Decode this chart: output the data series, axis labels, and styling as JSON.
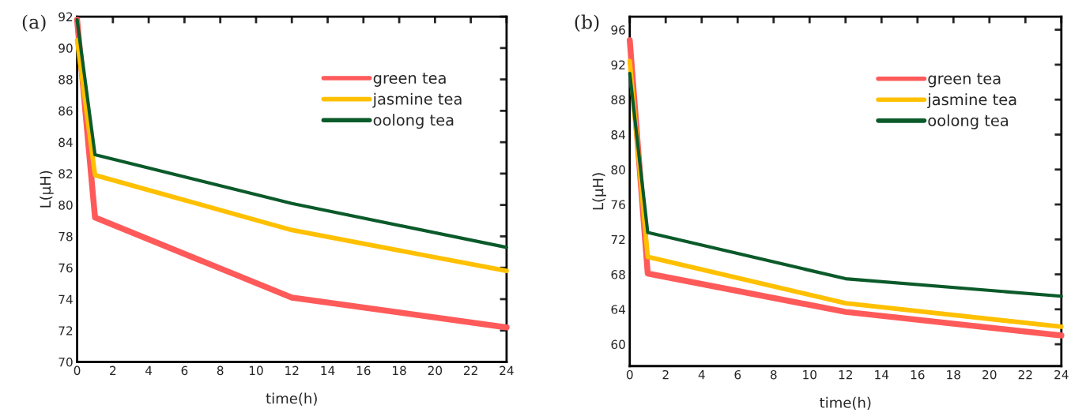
{
  "chart_data": [
    {
      "type": "line",
      "xlabel": "time(h)",
      "ylabel": "L(μH)",
      "annotations": [
        "(a)"
      ],
      "x": [
        0,
        1,
        12,
        24
      ],
      "series": [
        {
          "name": "green tea",
          "color": "#ff5a5a",
          "values": [
            91.8,
            79.2,
            74.1,
            72.2
          ]
        },
        {
          "name": "jasmine tea",
          "color": "#ffc000",
          "values": [
            90.5,
            81.9,
            78.4,
            75.8
          ]
        },
        {
          "name": "oolong tea",
          "color": "#0b5a2a",
          "values": [
            91.8,
            83.2,
            80.1,
            77.3
          ]
        }
      ],
      "xlim": [
        0,
        24
      ],
      "xticks": [
        0,
        2,
        4,
        6,
        8,
        10,
        12,
        14,
        16,
        18,
        20,
        22,
        24
      ],
      "ylim": [
        70,
        92
      ],
      "yticks": [
        70,
        72,
        74,
        76,
        78,
        80,
        82,
        84,
        86,
        88,
        90,
        92
      ],
      "grid": false,
      "legend": "top right",
      "marker": "none",
      "line_style": "solid"
    },
    {
      "type": "line",
      "xlabel": "time(h)",
      "ylabel": "L(μH)",
      "annotations": [
        "(b)"
      ],
      "x": [
        0,
        1,
        12,
        24
      ],
      "series": [
        {
          "name": "green tea",
          "color": "#ff5a5a",
          "values": [
            94.8,
            68.1,
            63.7,
            61.0
          ]
        },
        {
          "name": "jasmine tea",
          "color": "#ffc000",
          "values": [
            92.4,
            70.0,
            64.7,
            62.0
          ]
        },
        {
          "name": "oolong tea",
          "color": "#0b5a2a",
          "values": [
            91.0,
            72.8,
            67.5,
            65.5
          ]
        }
      ],
      "xlim": [
        0,
        24
      ],
      "xticks": [
        0,
        2,
        4,
        6,
        8,
        10,
        12,
        14,
        16,
        18,
        20,
        22,
        24
      ],
      "ylim": [
        57.5,
        97.5
      ],
      "yticks": [
        60,
        64,
        68,
        72,
        76,
        80,
        84,
        88,
        92,
        96
      ],
      "grid": false,
      "legend": "top right",
      "marker": "none",
      "line_style": "solid"
    }
  ]
}
